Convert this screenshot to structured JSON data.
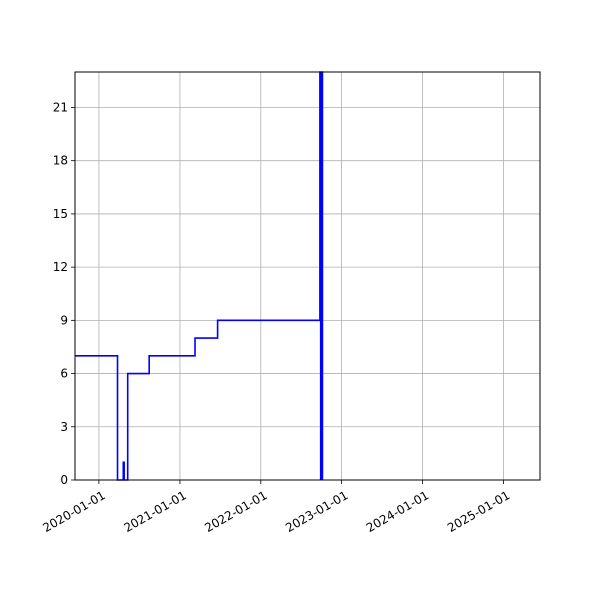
{
  "chart_data": {
    "type": "line",
    "title": "",
    "xlabel": "",
    "ylabel": "",
    "x_axis": "date",
    "xlim": [
      "2019-09-15",
      "2025-06-15"
    ],
    "ylim": [
      0,
      23
    ],
    "grid": true,
    "legend": "none",
    "xticks": [
      "2020-01-01",
      "2021-01-01",
      "2022-01-01",
      "2023-01-01",
      "2024-01-01",
      "2025-01-01"
    ],
    "yticks": [
      0,
      3,
      6,
      9,
      12,
      15,
      18,
      21
    ],
    "series": [
      {
        "color": "#0000ff",
        "step": "post",
        "points": [
          [
            "2019-09-15",
            7
          ],
          [
            "2020-03-25",
            0
          ],
          [
            "2020-04-20",
            1
          ],
          [
            "2020-04-24",
            0
          ],
          [
            "2020-05-10",
            6
          ],
          [
            "2020-08-15",
            7
          ],
          [
            "2021-03-10",
            8
          ],
          [
            "2021-06-20",
            9
          ],
          [
            "2022-09-25",
            23
          ],
          [
            "2022-10-10",
            23
          ]
        ]
      }
    ],
    "band": {
      "x_start": "2022-09-25",
      "x_end": "2022-10-10",
      "color": "#0000ff"
    }
  }
}
